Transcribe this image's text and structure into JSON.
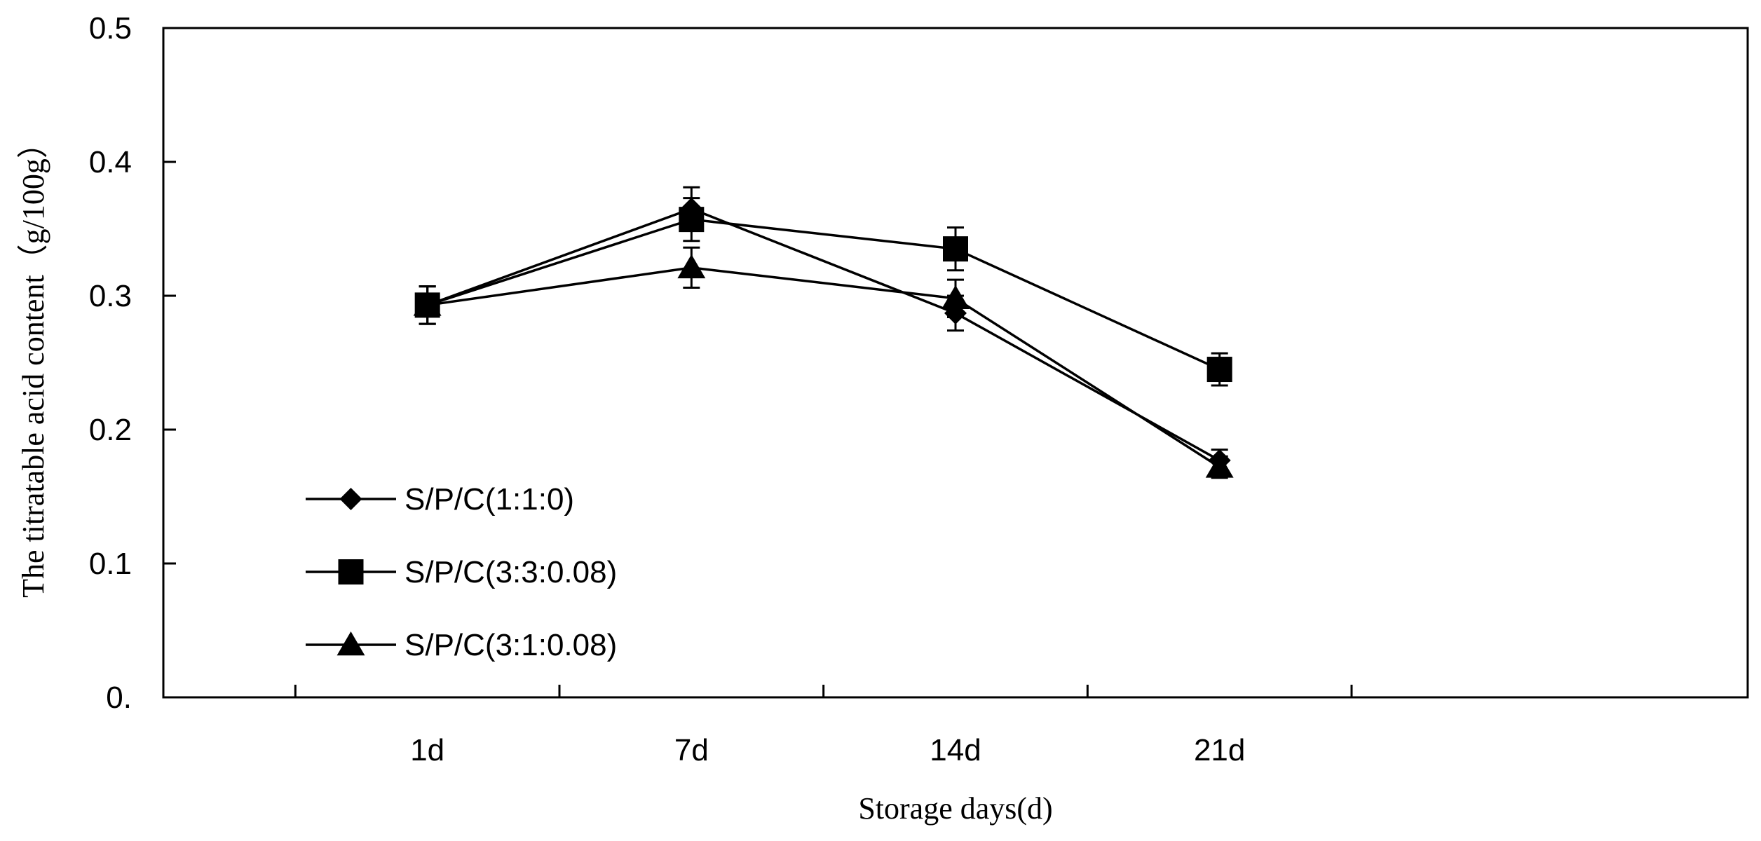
{
  "chart_data": {
    "type": "line",
    "title": "",
    "xlabel": "Storage days(d)",
    "ylabel": "The titratable acid content（g/100g）",
    "categories": [
      "1d",
      "7d",
      "14d",
      "21d"
    ],
    "ylim": [
      0,
      0.5
    ],
    "yticks": [
      0,
      0.1,
      0.2,
      0.3,
      0.4,
      0.5
    ],
    "ytick_labels": [
      "0.",
      "0.1",
      "0.2",
      "0.3",
      "0.4",
      "0.5"
    ],
    "grid": false,
    "legend_position": "lower-left",
    "series": [
      {
        "name": "S/P/C(1:1:0)",
        "marker": "diamond",
        "values": [
          0.293,
          0.365,
          0.287,
          0.177
        ],
        "errors": [
          0.014,
          0.016,
          0.013,
          0.008
        ]
      },
      {
        "name": "S/P/C(3:3:0.08)",
        "marker": "square",
        "values": [
          0.293,
          0.357,
          0.335,
          0.245
        ],
        "errors": [
          0.014,
          0.016,
          0.016,
          0.012
        ]
      },
      {
        "name": "S/P/C(3:1:0.08)",
        "marker": "triangle",
        "values": [
          0.293,
          0.321,
          0.298,
          0.172
        ],
        "errors": [
          0.014,
          0.015,
          0.014,
          0.008
        ]
      }
    ],
    "colors": {
      "line": "#000000",
      "background": "#ffffff"
    }
  }
}
